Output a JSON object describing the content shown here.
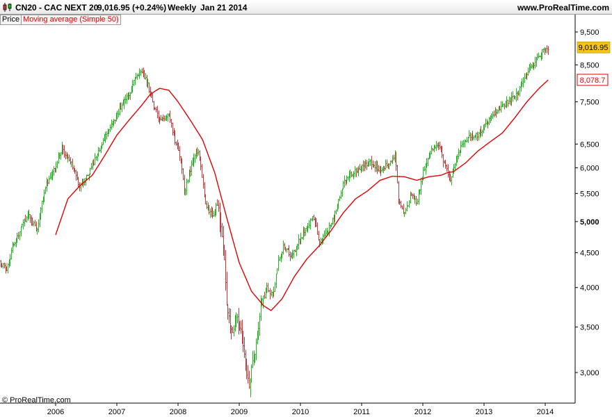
{
  "header": {
    "title": "CN20 - CAC NEXT 20",
    "quote": "9,016.95 (+0.24%)",
    "period": "Weekly",
    "date": "Jan 21 2014",
    "brand": "www.ProRealTime.com",
    "icon": "candlestick-icon"
  },
  "legend": {
    "price_label": "Price",
    "ma_label": "Moving average (Simple 50)"
  },
  "footer": {
    "copyright": "© ProRealTime.com"
  },
  "colors": {
    "up": "#1fb81f",
    "down": "#c23a3a",
    "ma": "#e00000",
    "last_price_bg": "#f4c31a",
    "ma_badge_border": "#e00000"
  },
  "chart_data": {
    "type": "line",
    "scale": "log",
    "last_price_label": "9,016.95",
    "last_ma_label": "8,078.7",
    "y_ticks": [
      {
        "value": 3000,
        "label": "3,000"
      },
      {
        "value": 3500,
        "label": "3,500"
      },
      {
        "value": 4000,
        "label": "4,000"
      },
      {
        "value": 4500,
        "label": "4,500"
      },
      {
        "value": 5000,
        "label": "5,000",
        "bold": true
      },
      {
        "value": 5500,
        "label": "5,500"
      },
      {
        "value": 6000,
        "label": "6,000"
      },
      {
        "value": 6500,
        "label": "6,500"
      },
      {
        "value": 7500,
        "label": "7,500"
      },
      {
        "value": 8500,
        "label": "8,500"
      },
      {
        "value": 9500,
        "label": "9,500"
      }
    ],
    "x_ticks": [
      {
        "t": 2006.0,
        "label": "2006"
      },
      {
        "t": 2007.0,
        "label": "2007"
      },
      {
        "t": 2008.0,
        "label": "2008"
      },
      {
        "t": 2009.0,
        "label": "2009"
      },
      {
        "t": 2010.0,
        "label": "2010"
      },
      {
        "t": 2011.0,
        "label": "2011"
      },
      {
        "t": 2012.0,
        "label": "2012"
      },
      {
        "t": 2013.0,
        "label": "2013"
      },
      {
        "t": 2014.0,
        "label": "2014"
      }
    ],
    "series": [
      {
        "name": "Price",
        "style": "ohlc-weekly",
        "points": [
          [
            2005.08,
            4380
          ],
          [
            2005.2,
            4250
          ],
          [
            2005.3,
            4600
          ],
          [
            2005.45,
            4950
          ],
          [
            2005.55,
            5100
          ],
          [
            2005.7,
            4850
          ],
          [
            2005.75,
            5250
          ],
          [
            2005.85,
            5700
          ],
          [
            2006.0,
            6050
          ],
          [
            2006.1,
            6400
          ],
          [
            2006.2,
            6150
          ],
          [
            2006.3,
            6000
          ],
          [
            2006.38,
            5600
          ],
          [
            2006.5,
            5800
          ],
          [
            2006.65,
            6200
          ],
          [
            2006.8,
            6650
          ],
          [
            2006.95,
            7000
          ],
          [
            2007.1,
            7500
          ],
          [
            2007.2,
            7700
          ],
          [
            2007.3,
            8200
          ],
          [
            2007.4,
            8350
          ],
          [
            2007.5,
            7950
          ],
          [
            2007.6,
            7400
          ],
          [
            2007.7,
            7000
          ],
          [
            2007.85,
            7200
          ],
          [
            2007.95,
            6550
          ],
          [
            2008.05,
            6100
          ],
          [
            2008.1,
            5500
          ],
          [
            2008.2,
            6000
          ],
          [
            2008.3,
            6400
          ],
          [
            2008.35,
            6200
          ],
          [
            2008.45,
            5300
          ],
          [
            2008.55,
            5100
          ],
          [
            2008.65,
            5250
          ],
          [
            2008.75,
            4400
          ],
          [
            2008.8,
            3700
          ],
          [
            2008.87,
            3450
          ],
          [
            2008.95,
            3600
          ],
          [
            2009.05,
            3350
          ],
          [
            2009.15,
            2870
          ],
          [
            2009.25,
            3200
          ],
          [
            2009.35,
            3750
          ],
          [
            2009.45,
            4000
          ],
          [
            2009.55,
            3900
          ],
          [
            2009.62,
            4300
          ],
          [
            2009.72,
            4600
          ],
          [
            2009.85,
            4450
          ],
          [
            2009.95,
            4650
          ],
          [
            2010.1,
            4900
          ],
          [
            2010.2,
            5100
          ],
          [
            2010.3,
            4700
          ],
          [
            2010.4,
            4750
          ],
          [
            2010.55,
            5100
          ],
          [
            2010.7,
            5700
          ],
          [
            2010.85,
            5900
          ],
          [
            2011.0,
            6000
          ],
          [
            2011.15,
            6100
          ],
          [
            2011.3,
            5950
          ],
          [
            2011.45,
            6100
          ],
          [
            2011.55,
            6250
          ],
          [
            2011.6,
            5400
          ],
          [
            2011.7,
            5100
          ],
          [
            2011.8,
            5500
          ],
          [
            2011.9,
            5300
          ],
          [
            2012.0,
            5900
          ],
          [
            2012.1,
            6300
          ],
          [
            2012.25,
            6500
          ],
          [
            2012.4,
            5900
          ],
          [
            2012.45,
            5750
          ],
          [
            2012.6,
            6400
          ],
          [
            2012.75,
            6650
          ],
          [
            2012.9,
            6700
          ],
          [
            2013.0,
            6900
          ],
          [
            2013.15,
            7200
          ],
          [
            2013.3,
            7400
          ],
          [
            2013.45,
            7600
          ],
          [
            2013.55,
            7700
          ],
          [
            2013.7,
            8300
          ],
          [
            2013.85,
            8600
          ],
          [
            2013.95,
            8900
          ],
          [
            2014.05,
            9017
          ]
        ]
      },
      {
        "name": "Moving average (Simple 50)",
        "style": "line",
        "points": [
          [
            2006.0,
            4780
          ],
          [
            2006.2,
            5400
          ],
          [
            2006.4,
            5650
          ],
          [
            2006.6,
            5850
          ],
          [
            2006.8,
            6250
          ],
          [
            2007.0,
            6700
          ],
          [
            2007.2,
            7050
          ],
          [
            2007.4,
            7400
          ],
          [
            2007.55,
            7700
          ],
          [
            2007.7,
            7850
          ],
          [
            2007.85,
            7800
          ],
          [
            2008.0,
            7500
          ],
          [
            2008.2,
            7050
          ],
          [
            2008.4,
            6600
          ],
          [
            2008.6,
            5900
          ],
          [
            2008.8,
            5050
          ],
          [
            2009.0,
            4350
          ],
          [
            2009.2,
            3950
          ],
          [
            2009.4,
            3760
          ],
          [
            2009.52,
            3700
          ],
          [
            2009.7,
            3850
          ],
          [
            2009.9,
            4150
          ],
          [
            2010.1,
            4400
          ],
          [
            2010.3,
            4600
          ],
          [
            2010.5,
            4850
          ],
          [
            2010.7,
            5150
          ],
          [
            2010.9,
            5400
          ],
          [
            2011.1,
            5550
          ],
          [
            2011.3,
            5750
          ],
          [
            2011.5,
            5830
          ],
          [
            2011.7,
            5820
          ],
          [
            2011.9,
            5750
          ],
          [
            2012.1,
            5820
          ],
          [
            2012.3,
            5850
          ],
          [
            2012.4,
            5900
          ],
          [
            2012.5,
            5920
          ],
          [
            2012.7,
            6100
          ],
          [
            2012.9,
            6350
          ],
          [
            2013.1,
            6550
          ],
          [
            2013.3,
            6750
          ],
          [
            2013.5,
            7100
          ],
          [
            2013.7,
            7500
          ],
          [
            2013.9,
            7850
          ],
          [
            2014.05,
            8079
          ]
        ]
      }
    ]
  }
}
